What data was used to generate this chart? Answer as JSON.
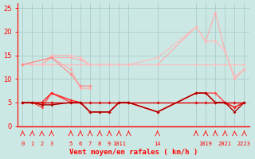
{
  "background_color": "#cce8e4",
  "grid_color": "#aacccc",
  "ylim": [
    0,
    26
  ],
  "yticks": [
    0,
    5,
    10,
    15,
    20,
    25
  ],
  "xlim": [
    -0.5,
    23.5
  ],
  "xtick_positions": [
    0,
    1,
    2,
    3,
    5,
    6,
    7,
    8,
    9,
    10,
    11,
    14,
    18,
    19,
    20,
    21,
    22,
    23
  ],
  "xtick_labels": [
    "0",
    "1",
    "2",
    "3",
    "5",
    "6",
    "7",
    "8",
    "9",
    "1011",
    "",
    "14",
    "",
    "1819",
    "",
    "2021",
    "",
    "2223"
  ],
  "xlabel": "Vent moyen/en rafales ( km/h )",
  "series": [
    {
      "color": "#ffaaaa",
      "lw": 0.8,
      "ms": 2.0,
      "x": [
        0,
        1,
        2,
        3,
        5,
        6,
        7,
        8,
        9,
        10,
        11,
        14,
        18,
        19,
        20,
        21,
        22,
        23
      ],
      "y": [
        13,
        13,
        13,
        14.5,
        14.5,
        14,
        13,
        13,
        13,
        13,
        13,
        13,
        21,
        18,
        24,
        16,
        10,
        12
      ]
    },
    {
      "color": "#ffbbbb",
      "lw": 0.8,
      "ms": 2.0,
      "x": [
        0,
        1,
        2,
        3,
        5,
        6,
        7,
        8,
        9,
        10,
        11,
        14,
        18,
        19,
        20,
        21,
        22,
        23
      ],
      "y": [
        13,
        13,
        13,
        15,
        15,
        14.5,
        13,
        13,
        13,
        13,
        13,
        14.5,
        21,
        18,
        18,
        16,
        10.5,
        12
      ]
    },
    {
      "color": "#ffbbbb",
      "lw": 0.8,
      "ms": 2.0,
      "x": [
        0,
        1,
        2,
        3,
        5,
        6,
        7,
        8,
        9,
        10,
        11,
        14,
        18,
        19,
        20,
        21,
        22,
        23
      ],
      "y": [
        13,
        13,
        13,
        13,
        13,
        13,
        13,
        13,
        13,
        13,
        13,
        13,
        13,
        13,
        13,
        13,
        13,
        13
      ]
    },
    {
      "color": "#ffaaaa",
      "lw": 0.8,
      "ms": 2.0,
      "x": [
        0,
        3,
        5,
        6,
        7
      ],
      "y": [
        13,
        14.5,
        12,
        8,
        8
      ]
    },
    {
      "color": "#ff8888",
      "lw": 0.8,
      "ms": 2.0,
      "x": [
        0,
        3,
        5,
        6,
        7
      ],
      "y": [
        13,
        14.5,
        11,
        8.5,
        8.5
      ]
    },
    {
      "color": "#ff4444",
      "lw": 1.0,
      "ms": 2.0,
      "x": [
        0,
        1,
        2,
        3,
        5,
        6,
        7,
        8,
        9,
        10,
        11,
        14,
        18,
        19,
        20,
        21,
        22,
        23
      ],
      "y": [
        5,
        5,
        4,
        7,
        5,
        5,
        3,
        3,
        3,
        5,
        5,
        3,
        7,
        7,
        7,
        5,
        4,
        5
      ]
    },
    {
      "color": "#ff2222",
      "lw": 1.0,
      "ms": 2.0,
      "x": [
        0,
        1,
        2,
        3,
        5,
        6,
        7,
        8,
        9,
        10,
        11,
        14,
        18,
        19,
        20,
        21,
        22,
        23
      ],
      "y": [
        5,
        5,
        5,
        7,
        5.5,
        5,
        3,
        3,
        3,
        5,
        5,
        3,
        7,
        7,
        5,
        5,
        4,
        5
      ]
    },
    {
      "color": "#dd0000",
      "lw": 1.0,
      "ms": 2.0,
      "x": [
        0,
        1,
        2,
        3,
        5,
        6,
        7,
        8,
        9,
        10,
        11,
        14,
        18,
        19,
        20,
        21,
        22,
        23
      ],
      "y": [
        5,
        5,
        5,
        5,
        5,
        5,
        5,
        5,
        5,
        5,
        5,
        5,
        5,
        5,
        5,
        5,
        5,
        5
      ]
    },
    {
      "color": "#aa0000",
      "lw": 1.0,
      "ms": 1.8,
      "x": [
        0,
        1,
        2,
        3,
        5,
        6,
        7,
        8,
        9,
        10,
        11,
        14,
        18,
        19,
        20,
        21,
        22,
        23
      ],
      "y": [
        5,
        5,
        4.5,
        4.5,
        5,
        5,
        3,
        3,
        3,
        5,
        5,
        3,
        7,
        7,
        5,
        5,
        3,
        5
      ]
    }
  ]
}
